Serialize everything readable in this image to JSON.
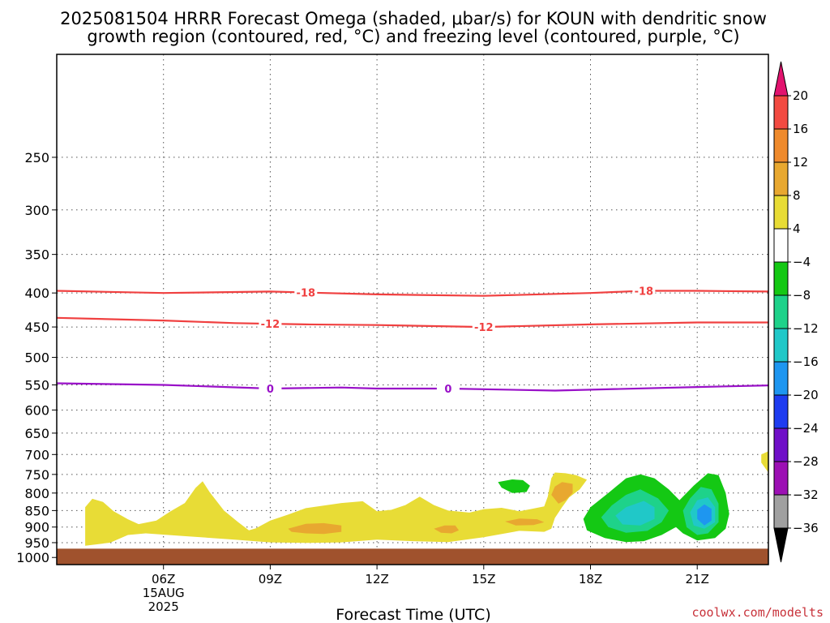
{
  "title": {
    "line1": "2025081504 HRRR Forecast Omega (shaded, μbar/s) for KOUN with dendritic snow",
    "line2": "growth region (contoured, red, °C) and freezing level (contoured, purple, °C)"
  },
  "xlabel": "Forecast Time (UTC)",
  "credit": "coolwx.com/modelts",
  "chart_data": {
    "type": "heatmap",
    "title": "2025081504 HRRR Forecast Omega (shaded, μbar/s) for KOUN with dendritic snow growth region (contoured, red, °C) and freezing level (contoured, purple, °C)",
    "xlabel": "Forecast Time (UTC)",
    "ylabel": "",
    "x_unit": "hours UTC on 15 Aug 2025",
    "xlim": [
      3.0,
      23.0
    ],
    "y_unit": "hPa",
    "ylim": [
      1025,
      175
    ],
    "y_scale": "log",
    "x_ticks": [
      {
        "value": 6,
        "label": "06Z",
        "date_line1": "15AUG",
        "date_line2": "2025"
      },
      {
        "value": 9,
        "label": "09Z"
      },
      {
        "value": 12,
        "label": "12Z"
      },
      {
        "value": 15,
        "label": "15Z"
      },
      {
        "value": 18,
        "label": "18Z"
      },
      {
        "value": 21,
        "label": "21Z"
      }
    ],
    "y_ticks": [
      250,
      300,
      350,
      400,
      450,
      500,
      550,
      600,
      650,
      700,
      750,
      800,
      850,
      900,
      950,
      1000
    ],
    "grid": true,
    "terrain": {
      "pressure_top": 970,
      "color": "#a0522d"
    },
    "colorbar": {
      "levels": [
        20,
        16,
        12,
        8,
        4,
        -4,
        -8,
        -12,
        -16,
        -20,
        -24,
        -28,
        -32,
        -36
      ],
      "colors": [
        "#e2136e",
        "#f24a41",
        "#ef8a2c",
        "#e8a830",
        "#e8dc36",
        "#ffffff",
        "#14c814",
        "#1ed28a",
        "#20c8c8",
        "#1e96f0",
        "#1e3cf0",
        "#7010c8",
        "#9c10b4",
        "#a0a0a0",
        "#000000"
      ],
      "unit": "μbar/s"
    },
    "contours": [
      {
        "name": "-18",
        "color": "#f04040",
        "points": [
          [
            3.0,
            397
          ],
          [
            6.0,
            400
          ],
          [
            9.0,
            398
          ],
          [
            12.0,
            402
          ],
          [
            15.0,
            404
          ],
          [
            18.0,
            400
          ],
          [
            19.5,
            397
          ],
          [
            21.0,
            397
          ],
          [
            23.0,
            398
          ]
        ],
        "labels": [
          {
            "x": 10.0,
            "value": "-18"
          },
          {
            "x": 19.5,
            "value": "-18"
          }
        ]
      },
      {
        "name": "-12",
        "color": "#f04040",
        "points": [
          [
            3.0,
            436
          ],
          [
            6.0,
            440
          ],
          [
            8.0,
            444
          ],
          [
            9.0,
            445
          ],
          [
            10.0,
            446
          ],
          [
            12.0,
            447
          ],
          [
            15.0,
            450
          ],
          [
            18.0,
            446
          ],
          [
            21.0,
            443
          ],
          [
            23.0,
            443
          ]
        ],
        "labels": [
          {
            "x": 9.0,
            "value": "-12"
          },
          {
            "x": 15.0,
            "value": "-12"
          }
        ]
      },
      {
        "name": "0",
        "color": "#9910c8",
        "points": [
          [
            3.0,
            547
          ],
          [
            6.0,
            550
          ],
          [
            9.0,
            557
          ],
          [
            11.0,
            555
          ],
          [
            12.0,
            557
          ],
          [
            14.0,
            557
          ],
          [
            17.0,
            561
          ],
          [
            21.0,
            554
          ],
          [
            23.0,
            551
          ]
        ],
        "labels": [
          {
            "x": 9.0,
            "value": "0"
          },
          {
            "x": 14.0,
            "value": "0"
          }
        ]
      }
    ],
    "shaded_regions": [
      {
        "name": "yellow-main",
        "level": 4,
        "color": "#e8dc36",
        "points": [
          [
            3.8,
            960
          ],
          [
            3.8,
            840
          ],
          [
            4.0,
            816
          ],
          [
            4.3,
            825
          ],
          [
            4.6,
            852
          ],
          [
            5.0,
            876
          ],
          [
            5.3,
            891
          ],
          [
            5.8,
            880
          ],
          [
            6.2,
            852
          ],
          [
            6.6,
            828
          ],
          [
            6.9,
            786
          ],
          [
            7.1,
            768
          ],
          [
            7.3,
            798
          ],
          [
            7.7,
            850
          ],
          [
            8.1,
            885
          ],
          [
            8.4,
            910
          ],
          [
            8.6,
            904
          ],
          [
            9.0,
            880
          ],
          [
            9.5,
            862
          ],
          [
            10.0,
            843
          ],
          [
            11.0,
            828
          ],
          [
            11.6,
            823
          ],
          [
            12.0,
            852
          ],
          [
            12.4,
            848
          ],
          [
            12.8,
            834
          ],
          [
            13.2,
            810
          ],
          [
            13.6,
            834
          ],
          [
            14.0,
            850
          ],
          [
            14.6,
            856
          ],
          [
            15.0,
            846
          ],
          [
            15.5,
            842
          ],
          [
            16.0,
            852
          ],
          [
            16.3,
            846
          ],
          [
            16.7,
            838
          ],
          [
            16.8,
            810
          ],
          [
            16.9,
            760
          ],
          [
            17.0,
            745
          ],
          [
            17.3,
            747
          ],
          [
            17.6,
            752
          ],
          [
            17.9,
            764
          ],
          [
            17.7,
            790
          ],
          [
            17.4,
            812
          ],
          [
            17.2,
            840
          ],
          [
            17.0,
            872
          ],
          [
            16.9,
            905
          ],
          [
            16.7,
            915
          ],
          [
            16.0,
            912
          ],
          [
            15.0,
            932
          ],
          [
            14.0,
            948
          ],
          [
            13.0,
            945
          ],
          [
            12.0,
            940
          ],
          [
            11.0,
            949
          ],
          [
            10.0,
            951
          ],
          [
            9.0,
            949
          ],
          [
            8.0,
            940
          ],
          [
            6.5,
            928
          ],
          [
            5.5,
            920
          ],
          [
            5.0,
            925
          ],
          [
            4.5,
            950
          ]
        ]
      },
      {
        "name": "yellow-edge-right",
        "level": 4,
        "color": "#e8dc36",
        "points": [
          [
            22.8,
            700
          ],
          [
            23.0,
            692
          ],
          [
            23.0,
            745
          ],
          [
            22.8,
            720
          ]
        ]
      },
      {
        "name": "orange-1",
        "level": 8,
        "color": "#e8a830",
        "points": [
          [
            9.5,
            905
          ],
          [
            10.0,
            890
          ],
          [
            10.5,
            888
          ],
          [
            11.0,
            895
          ],
          [
            11.0,
            915
          ],
          [
            10.5,
            922
          ],
          [
            10.0,
            920
          ],
          [
            9.6,
            915
          ]
        ]
      },
      {
        "name": "orange-2",
        "level": 8,
        "color": "#e8a830",
        "points": [
          [
            13.6,
            905
          ],
          [
            13.9,
            895
          ],
          [
            14.2,
            895
          ],
          [
            14.3,
            910
          ],
          [
            14.1,
            920
          ],
          [
            13.8,
            918
          ]
        ]
      },
      {
        "name": "orange-3",
        "level": 8,
        "color": "#e8a830",
        "points": [
          [
            15.6,
            883
          ],
          [
            16.0,
            874
          ],
          [
            16.5,
            876
          ],
          [
            16.7,
            885
          ],
          [
            16.4,
            894
          ],
          [
            15.9,
            895
          ]
        ]
      },
      {
        "name": "orange-4",
        "level": 8,
        "color": "#e8a830",
        "points": [
          [
            16.9,
            805
          ],
          [
            17.0,
            782
          ],
          [
            17.2,
            770
          ],
          [
            17.5,
            775
          ],
          [
            17.5,
            800
          ],
          [
            17.3,
            820
          ],
          [
            17.1,
            830
          ]
        ]
      },
      {
        "name": "green-small",
        "level": -4,
        "color": "#14c814",
        "points": [
          [
            15.4,
            770
          ],
          [
            15.8,
            763
          ],
          [
            16.1,
            765
          ],
          [
            16.3,
            780
          ],
          [
            16.2,
            797
          ],
          [
            15.8,
            800
          ],
          [
            15.5,
            785
          ]
        ]
      },
      {
        "name": "green-1",
        "level": -4,
        "color": "#14c814",
        "points": [
          [
            17.8,
            875
          ],
          [
            18.0,
            840
          ],
          [
            18.5,
            800
          ],
          [
            19.0,
            760
          ],
          [
            19.4,
            750
          ],
          [
            19.8,
            760
          ],
          [
            20.2,
            790
          ],
          [
            20.5,
            820
          ],
          [
            20.9,
            780
          ],
          [
            21.3,
            747
          ],
          [
            21.6,
            752
          ],
          [
            21.8,
            800
          ],
          [
            21.9,
            860
          ],
          [
            21.8,
            905
          ],
          [
            21.5,
            935
          ],
          [
            21.0,
            943
          ],
          [
            20.6,
            920
          ],
          [
            20.4,
            900
          ],
          [
            20.0,
            925
          ],
          [
            19.5,
            945
          ],
          [
            19.0,
            948
          ],
          [
            18.4,
            935
          ],
          [
            17.9,
            910
          ]
        ]
      },
      {
        "name": "teal-1",
        "level": -8,
        "color": "#1ed28a",
        "points": [
          [
            18.3,
            870
          ],
          [
            18.6,
            835
          ],
          [
            19.0,
            805
          ],
          [
            19.4,
            790
          ],
          [
            19.9,
            815
          ],
          [
            20.2,
            850
          ],
          [
            20.0,
            885
          ],
          [
            19.6,
            912
          ],
          [
            19.0,
            918
          ],
          [
            18.5,
            900
          ]
        ]
      },
      {
        "name": "teal-2",
        "level": -8,
        "color": "#1ed28a",
        "points": [
          [
            20.6,
            850
          ],
          [
            20.8,
            815
          ],
          [
            21.1,
            783
          ],
          [
            21.4,
            790
          ],
          [
            21.6,
            830
          ],
          [
            21.6,
            885
          ],
          [
            21.3,
            920
          ],
          [
            21.0,
            925
          ],
          [
            20.7,
            900
          ]
        ]
      },
      {
        "name": "cyan-1",
        "level": -12,
        "color": "#20c8c8",
        "points": [
          [
            18.7,
            865
          ],
          [
            19.0,
            840
          ],
          [
            19.5,
            822
          ],
          [
            19.8,
            840
          ],
          [
            19.8,
            875
          ],
          [
            19.4,
            895
          ],
          [
            18.9,
            892
          ]
        ]
      },
      {
        "name": "cyan-2",
        "level": -12,
        "color": "#20c8c8",
        "points": [
          [
            20.8,
            855
          ],
          [
            21.0,
            820
          ],
          [
            21.3,
            812
          ],
          [
            21.5,
            840
          ],
          [
            21.5,
            885
          ],
          [
            21.2,
            905
          ],
          [
            20.9,
            895
          ]
        ]
      },
      {
        "name": "blue-2",
        "level": -16,
        "color": "#1e96f0",
        "points": [
          [
            21.0,
            848
          ],
          [
            21.2,
            832
          ],
          [
            21.4,
            845
          ],
          [
            21.4,
            880
          ],
          [
            21.2,
            895
          ],
          [
            21.0,
            875
          ]
        ]
      }
    ]
  }
}
